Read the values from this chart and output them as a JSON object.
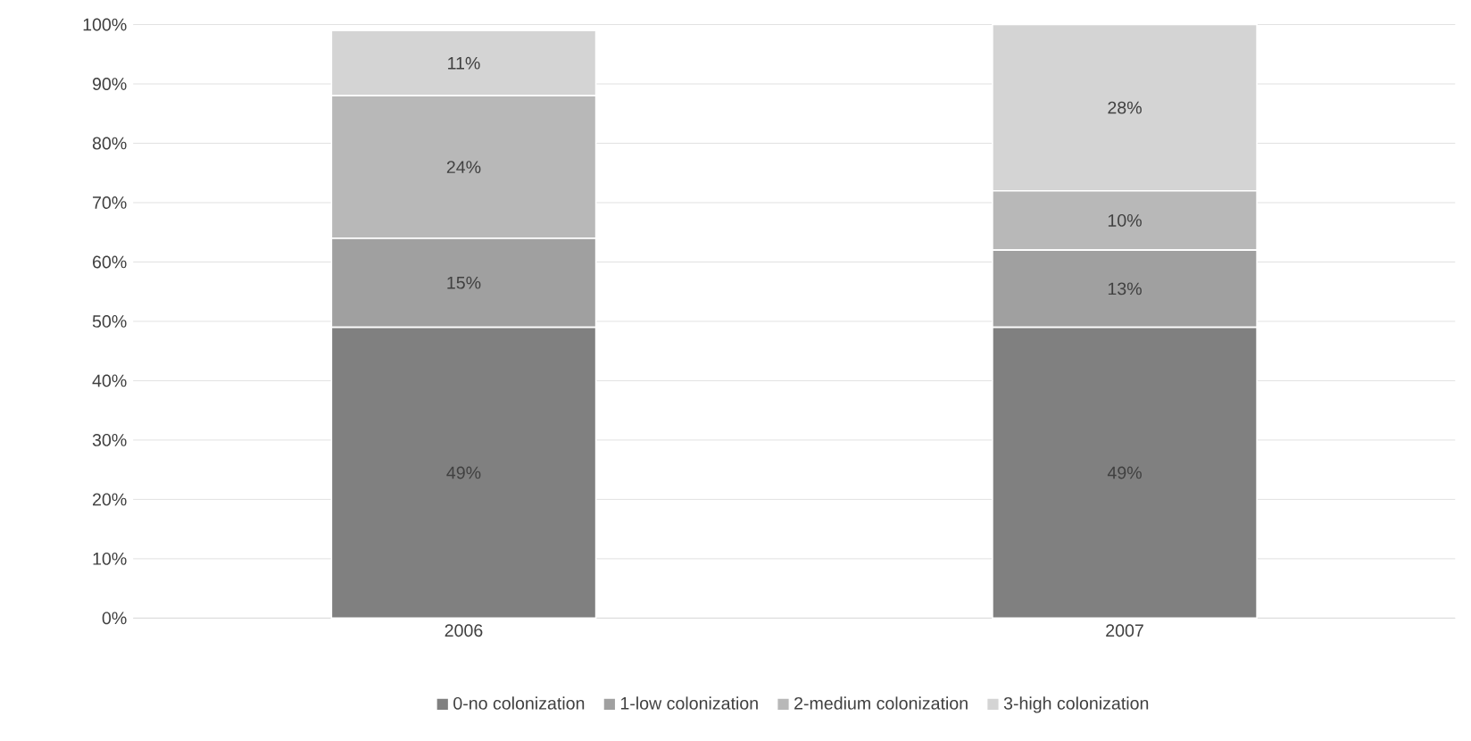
{
  "chart_data": {
    "type": "bar",
    "stacked": true,
    "categories": [
      "2006",
      "2007"
    ],
    "series": [
      {
        "name": "0-no colonization",
        "color": "#808080",
        "values": [
          49,
          49
        ],
        "value_labels": [
          "49%",
          "49%"
        ]
      },
      {
        "name": "1-low colonization",
        "color": "#a0a0a0",
        "values": [
          15,
          13
        ],
        "value_labels": [
          "15%",
          "13%"
        ]
      },
      {
        "name": "2-medium colonization",
        "color": "#b8b8b8",
        "values": [
          24,
          10
        ],
        "value_labels": [
          "24%",
          "10%"
        ]
      },
      {
        "name": "3-high colonization",
        "color": "#d4d4d4",
        "values": [
          11,
          28
        ],
        "value_labels": [
          "11%",
          "28%"
        ]
      }
    ],
    "ylim": [
      0,
      100
    ],
    "yticks": [
      {
        "value": 0,
        "label": "0%"
      },
      {
        "value": 10,
        "label": "10%"
      },
      {
        "value": 20,
        "label": "20%"
      },
      {
        "value": 30,
        "label": "30%"
      },
      {
        "value": 40,
        "label": "40%"
      },
      {
        "value": 50,
        "label": "50%"
      },
      {
        "value": 60,
        "label": "60%"
      },
      {
        "value": 70,
        "label": "70%"
      },
      {
        "value": 80,
        "label": "80%"
      },
      {
        "value": 90,
        "label": "90%"
      },
      {
        "value": 100,
        "label": "100%"
      }
    ],
    "grid": "y",
    "legend": "bottom"
  }
}
